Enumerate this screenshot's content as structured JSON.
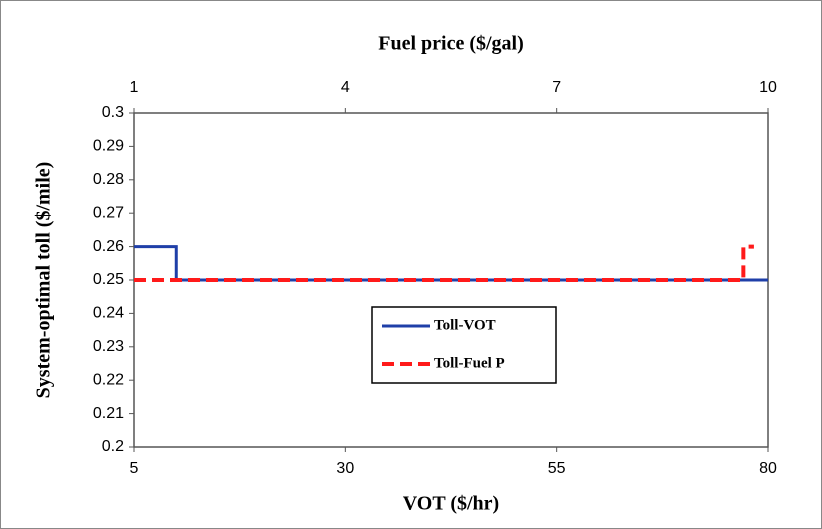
{
  "chart_data": {
    "type": "line",
    "xlabel": "VOT ($/hr)",
    "x2label": "Fuel price ($/gal)",
    "ylabel": "System-optimal toll ($/mile)",
    "xlim": [
      5,
      80
    ],
    "xticks": [
      5,
      30,
      55,
      80
    ],
    "x2lim": [
      1,
      10
    ],
    "x2ticks": [
      1,
      4,
      7,
      10
    ],
    "ylim": [
      0.2,
      0.3
    ],
    "yticks": [
      0.2,
      0.21,
      0.22,
      0.23,
      0.24,
      0.25,
      0.26,
      0.27,
      0.28,
      0.29,
      0.3
    ],
    "legend": "center",
    "series": [
      {
        "name": "Toll-VOT",
        "color": "#1f3fa8",
        "dash": false,
        "axis": "x",
        "x": [
          5,
          10,
          10,
          80
        ],
        "values": [
          0.26,
          0.26,
          0.25,
          0.25
        ]
      },
      {
        "name": "Toll-Fuel P",
        "color": "#ff1a1a",
        "dash": true,
        "axis": "x2",
        "x": [
          1,
          9.65,
          9.65,
          9.8
        ],
        "values": [
          0.25,
          0.25,
          0.26,
          0.26
        ]
      }
    ]
  }
}
